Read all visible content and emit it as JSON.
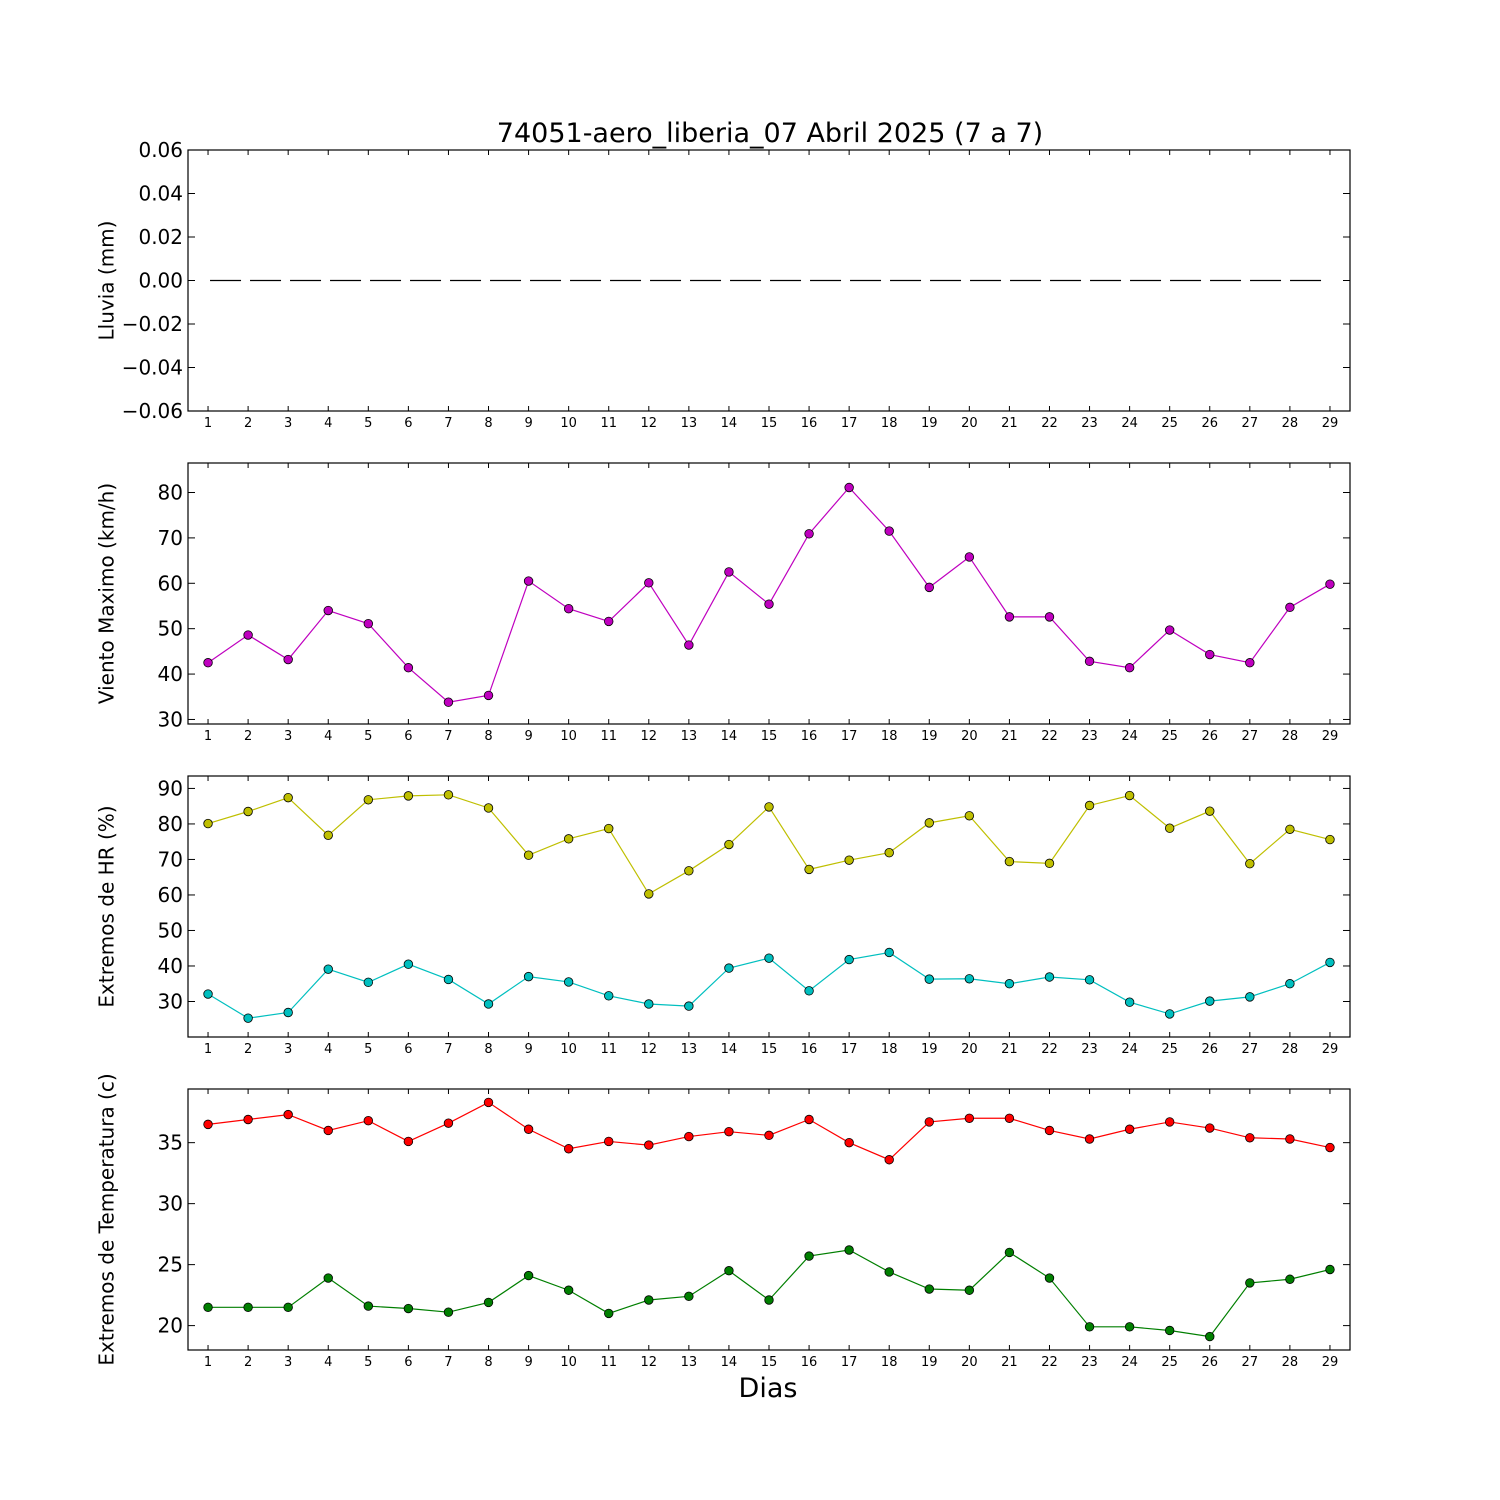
{
  "figure": {
    "title": "74051-aero_liberia_07 Abril 2025  (7 a 7)",
    "xlabel": "Dias"
  },
  "chart_data": [
    {
      "type": "line",
      "ylabel": "Lluvia (mm)",
      "x": [
        1,
        2,
        3,
        4,
        5,
        6,
        7,
        8,
        9,
        10,
        11,
        12,
        13,
        14,
        15,
        16,
        17,
        18,
        19,
        20,
        21,
        22,
        23,
        24,
        25,
        26,
        27,
        28,
        29
      ],
      "ylim": [
        -0.06,
        0.06
      ],
      "yticks": [
        -0.06,
        -0.04,
        -0.02,
        0.0,
        0.02,
        0.04,
        0.06
      ],
      "ytick_labels": [
        "−0.06",
        "−0.04",
        "−0.02",
        "0.00",
        "0.02",
        "0.04",
        "0.06"
      ],
      "series": [
        {
          "values": [
            0,
            0,
            0,
            0,
            0,
            0,
            0,
            0,
            0,
            0,
            0,
            0,
            0,
            0,
            0,
            0,
            0,
            0,
            0,
            0,
            0,
            0,
            0,
            0,
            0,
            0,
            0,
            0,
            0
          ],
          "color": "#000000",
          "style": "dashed",
          "marker": "none"
        }
      ],
      "grid": false
    },
    {
      "type": "line",
      "ylabel": "Viento Maximo (km/h)",
      "x": [
        1,
        2,
        3,
        4,
        5,
        6,
        7,
        8,
        9,
        10,
        11,
        12,
        13,
        14,
        15,
        16,
        17,
        18,
        19,
        20,
        21,
        22,
        23,
        24,
        25,
        26,
        27,
        28,
        29
      ],
      "ylim": [
        29,
        86.5
      ],
      "yticks": [
        30,
        40,
        50,
        60,
        70,
        80
      ],
      "ytick_labels": [
        "30",
        "40",
        "50",
        "60",
        "70",
        "80"
      ],
      "series": [
        {
          "values": [
            42.5,
            48.6,
            43.2,
            54.0,
            51.1,
            41.4,
            33.8,
            35.3,
            60.5,
            54.4,
            51.6,
            60.1,
            46.4,
            62.5,
            55.4,
            70.9,
            81.1,
            71.5,
            59.1,
            65.8,
            52.6,
            52.6,
            42.8,
            41.4,
            49.7,
            44.3,
            42.5,
            54.7,
            59.8
          ],
          "color": "#bf00bf",
          "marker": "circle"
        }
      ],
      "grid": false
    },
    {
      "type": "line",
      "ylabel": "Extremos de HR (%)",
      "x": [
        1,
        2,
        3,
        4,
        5,
        6,
        7,
        8,
        9,
        10,
        11,
        12,
        13,
        14,
        15,
        16,
        17,
        18,
        19,
        20,
        21,
        22,
        23,
        24,
        25,
        26,
        27,
        28,
        29
      ],
      "ylim": [
        20,
        93.5
      ],
      "yticks": [
        30,
        40,
        50,
        60,
        70,
        80,
        90
      ],
      "ytick_labels": [
        "30",
        "40",
        "50",
        "60",
        "70",
        "80",
        "90"
      ],
      "series": [
        {
          "values": [
            80.1,
            83.5,
            87.4,
            76.8,
            86.8,
            87.9,
            88.2,
            84.5,
            71.2,
            75.8,
            78.7,
            60.3,
            66.8,
            74.2,
            84.8,
            67.2,
            69.8,
            71.9,
            80.3,
            82.3,
            69.4,
            68.9,
            85.2,
            88.0,
            78.8,
            83.6,
            68.8,
            78.5,
            75.6
          ],
          "color": "#bfbf00",
          "marker": "circle"
        },
        {
          "values": [
            32.1,
            25.3,
            26.9,
            39.1,
            35.4,
            40.5,
            36.2,
            29.3,
            37.0,
            35.5,
            31.6,
            29.3,
            28.7,
            39.4,
            42.2,
            33.0,
            41.8,
            43.8,
            36.3,
            36.4,
            35.0,
            36.9,
            36.1,
            29.8,
            26.5,
            30.1,
            31.3,
            35.0,
            41.0
          ],
          "color": "#00bfbf",
          "marker": "circle"
        }
      ],
      "grid": false
    },
    {
      "type": "line",
      "ylabel": "Extremos de Temperatura (c)",
      "x": [
        1,
        2,
        3,
        4,
        5,
        6,
        7,
        8,
        9,
        10,
        11,
        12,
        13,
        14,
        15,
        16,
        17,
        18,
        19,
        20,
        21,
        22,
        23,
        24,
        25,
        26,
        27,
        28,
        29
      ],
      "ylim": [
        18,
        39.4
      ],
      "yticks": [
        20,
        25,
        30,
        35
      ],
      "ytick_labels": [
        "20",
        "25",
        "30",
        "35"
      ],
      "series": [
        {
          "values": [
            36.5,
            36.9,
            37.3,
            36.0,
            36.8,
            35.1,
            36.6,
            38.3,
            36.1,
            34.5,
            35.1,
            34.8,
            35.5,
            35.9,
            35.6,
            36.9,
            35.0,
            33.6,
            36.7,
            37.0,
            37.0,
            36.0,
            35.3,
            36.1,
            36.7,
            36.2,
            35.4,
            35.3,
            34.6
          ],
          "color": "#ff0000",
          "marker": "circle"
        },
        {
          "values": [
            21.5,
            21.5,
            21.5,
            23.9,
            21.6,
            21.4,
            21.1,
            21.9,
            24.1,
            22.9,
            21.0,
            22.1,
            22.4,
            24.5,
            22.1,
            25.7,
            26.2,
            24.4,
            23.0,
            22.9,
            26.0,
            23.9,
            19.9,
            19.9,
            19.6,
            19.1,
            23.5,
            23.8,
            24.6
          ],
          "color": "#007f00",
          "marker": "circle"
        }
      ],
      "grid": false
    }
  ]
}
